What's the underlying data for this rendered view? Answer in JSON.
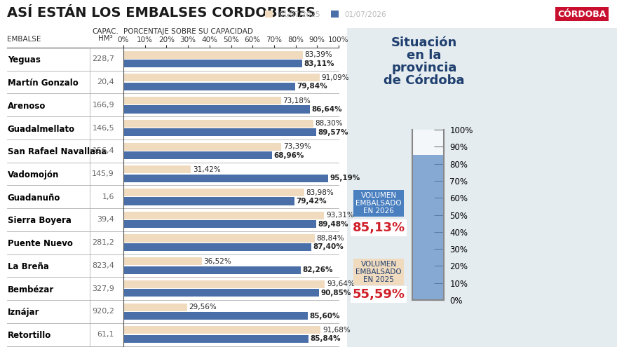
{
  "logo": "CÓRDOBA",
  "chart_data": [
    {
      "type": "bar",
      "orientation": "horizontal",
      "title": "ASÍ ESTÁN LOS EMBALSES CORDOBESES",
      "category_label": "EMBALSE",
      "xlabel": "PORCENTAJE SOBRE SU CAPACIDAD",
      "capacity_label": "CAPAC.\nHM³",
      "capacity": [
        228.7,
        20.4,
        166.9,
        146.5,
        156.4,
        145.9,
        1.6,
        39.4,
        281.2,
        823.4,
        327.9,
        920.2,
        61.1
      ],
      "capacity_labels": [
        "228,7",
        "20,4",
        "166,9",
        "146,5",
        "156,4",
        "145,9",
        "1,6",
        "39,4",
        "281,2",
        "823,4",
        "327,9",
        "920,2",
        "61,1"
      ],
      "categories": [
        "Yeguas",
        "Martín Gonzalo",
        "Arenoso",
        "Guadalmellato",
        "San Rafael Navallana",
        "Vadomojón",
        "Guadanuño",
        "Sierra Boyera",
        "Puente Nuevo",
        "La Breña",
        "Bembézar",
        "Iznájar",
        "Retortillo"
      ],
      "series": [
        {
          "name": "01/07/2025",
          "color": "#f0dbbf",
          "values": [
            83.39,
            91.09,
            73.18,
            88.3,
            73.39,
            31.42,
            83.98,
            93.31,
            88.84,
            36.52,
            93.64,
            29.56,
            91.68
          ],
          "value_labels": [
            "83,39%",
            "91,09%",
            "73,18%",
            "88,30%",
            "73,39%",
            "31,42%",
            "83,98%",
            "93,31%",
            "88,84%",
            "36,52%",
            "93,64%",
            "29,56%",
            "91,68%"
          ]
        },
        {
          "name": "01/07/2026",
          "color": "#4a6fa8",
          "values": [
            83.11,
            79.84,
            86.64,
            89.57,
            68.96,
            95.19,
            79.42,
            89.48,
            87.4,
            82.26,
            90.85,
            85.6,
            85.84
          ],
          "value_labels": [
            "83,11%",
            "79,84%",
            "86,64%",
            "89,57%",
            "68,96%",
            "95,19%",
            "79,42%",
            "89,48%",
            "87,40%",
            "82,26%",
            "90,85%",
            "85,60%",
            "85,84%"
          ]
        }
      ],
      "xlim": [
        0,
        100
      ],
      "xticks": [
        {
          "value": 0,
          "label": "0%"
        },
        {
          "value": 10,
          "label": "10%"
        },
        {
          "value": 20,
          "label": "20%"
        },
        {
          "value": 30,
          "label": "30%"
        },
        {
          "value": 40,
          "label": "40%"
        },
        {
          "value": 50,
          "label": "50%"
        },
        {
          "value": 60,
          "label": "60%"
        },
        {
          "value": 70,
          "label": "70%"
        },
        {
          "value": 80,
          "label": "80%"
        },
        {
          "value": 90,
          "label": "90%"
        },
        {
          "value": 100,
          "label": "100%"
        }
      ],
      "data_labels": true,
      "legend": "upper right",
      "grid": false
    },
    {
      "type": "gauge",
      "title": "Situación\nen la\nprovincia\nde Córdoba",
      "categories": [
        "VOLUMEN\nEMBALSADO\nEN 2026",
        "VOLUMEN\nEMBALSADO\nEN 2025"
      ],
      "values": [
        85.13,
        55.59
      ],
      "value_labels": [
        "85,13%",
        "55,59%"
      ],
      "colors": [
        "#4a7fc0",
        "#f0dbbf"
      ],
      "ylim": [
        0,
        100
      ],
      "yticks": [
        {
          "value": 0,
          "label": "0%"
        },
        {
          "value": 10,
          "label": "10%"
        },
        {
          "value": 20,
          "label": "20%"
        },
        {
          "value": 30,
          "label": "30%"
        },
        {
          "value": 40,
          "label": "40%"
        },
        {
          "value": 50,
          "label": "50%"
        },
        {
          "value": 60,
          "label": "60%"
        },
        {
          "value": 70,
          "label": "70%"
        },
        {
          "value": 80,
          "label": "80%"
        },
        {
          "value": 90,
          "label": "90%"
        },
        {
          "value": 100,
          "label": "100%"
        }
      ],
      "tick_labels": "y"
    }
  ]
}
